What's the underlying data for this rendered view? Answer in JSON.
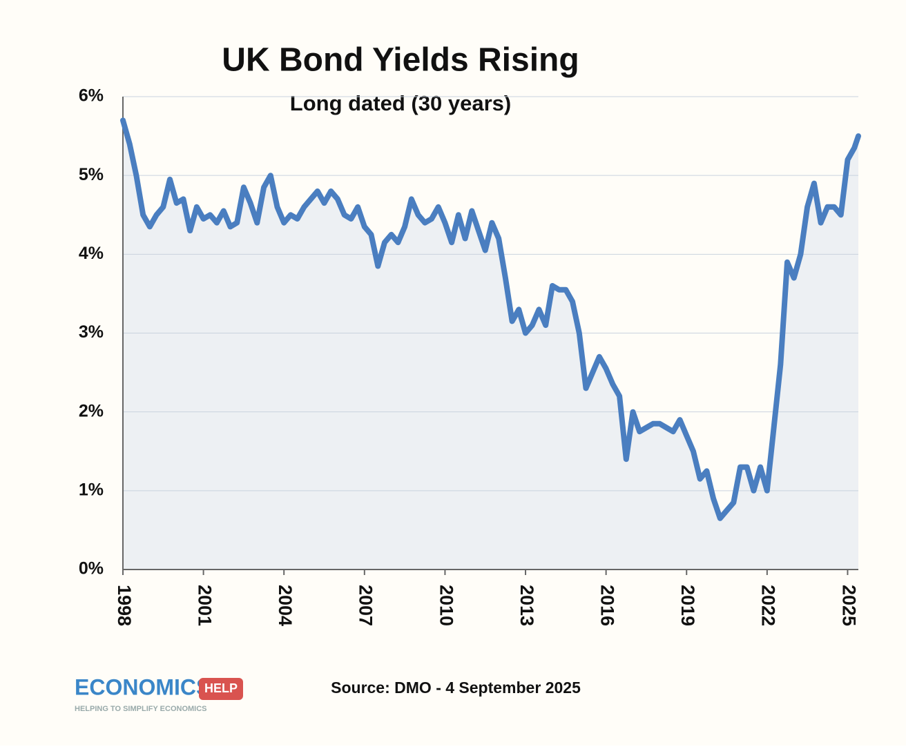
{
  "chart_data": {
    "type": "area-line",
    "title": "UK Bond Yields Rising",
    "subtitle": "Long dated (30 years)",
    "source": "Source: DMO - 4 September 2025",
    "color": "#4a7ec0",
    "fill": "#edf0f3",
    "grid": true,
    "xlim": [
      1998,
      2025.4
    ],
    "xticks": [
      1998,
      2001,
      2004,
      2007,
      2010,
      2013,
      2016,
      2019,
      2022,
      2025
    ],
    "ylim": [
      0,
      6
    ],
    "yticks": [
      {
        "value": 0,
        "label": "0%"
      },
      {
        "value": 1,
        "label": "1%"
      },
      {
        "value": 2,
        "label": "2%"
      },
      {
        "value": 3,
        "label": "3%"
      },
      {
        "value": 4,
        "label": "4%"
      },
      {
        "value": 5,
        "label": "5%"
      },
      {
        "value": 6,
        "label": "6%"
      }
    ],
    "x": [
      1998,
      1998.25,
      1998.5,
      1998.75,
      1999,
      1999.25,
      1999.5,
      1999.75,
      2000,
      2000.25,
      2000.5,
      2000.75,
      2001,
      2001.25,
      2001.5,
      2001.75,
      2002,
      2002.25,
      2002.5,
      2002.75,
      2003,
      2003.25,
      2003.5,
      2003.75,
      2004,
      2004.25,
      2004.5,
      2004.75,
      2005,
      2005.25,
      2005.5,
      2005.75,
      2006,
      2006.25,
      2006.5,
      2006.75,
      2007,
      2007.25,
      2007.5,
      2007.75,
      2008,
      2008.25,
      2008.5,
      2008.75,
      2009,
      2009.25,
      2009.5,
      2009.75,
      2010,
      2010.25,
      2010.5,
      2010.75,
      2011,
      2011.25,
      2011.5,
      2011.75,
      2012,
      2012.25,
      2012.5,
      2012.75,
      2013,
      2013.25,
      2013.5,
      2013.75,
      2014,
      2014.25,
      2014.5,
      2014.75,
      2015,
      2015.25,
      2015.5,
      2015.75,
      2016,
      2016.25,
      2016.5,
      2016.75,
      2017,
      2017.25,
      2017.5,
      2017.75,
      2018,
      2018.25,
      2018.5,
      2018.75,
      2019,
      2019.25,
      2019.5,
      2019.75,
      2020,
      2020.25,
      2020.5,
      2020.75,
      2021,
      2021.25,
      2021.5,
      2021.75,
      2022,
      2022.25,
      2022.5,
      2022.75,
      2023,
      2023.25,
      2023.5,
      2023.75,
      2024,
      2024.25,
      2024.5,
      2024.75,
      2025,
      2025.25,
      2025.4
    ],
    "values": [
      5.7,
      5.4,
      5.0,
      4.5,
      4.35,
      4.5,
      4.6,
      4.95,
      4.65,
      4.7,
      4.3,
      4.6,
      4.45,
      4.5,
      4.4,
      4.55,
      4.35,
      4.4,
      4.85,
      4.65,
      4.4,
      4.85,
      5.0,
      4.6,
      4.4,
      4.5,
      4.45,
      4.6,
      4.7,
      4.8,
      4.65,
      4.8,
      4.7,
      4.5,
      4.45,
      4.6,
      4.35,
      4.25,
      3.85,
      4.15,
      4.25,
      4.15,
      4.35,
      4.7,
      4.5,
      4.4,
      4.45,
      4.6,
      4.4,
      4.15,
      4.5,
      4.2,
      4.55,
      4.3,
      4.05,
      4.4,
      4.2,
      3.7,
      3.15,
      3.3,
      3.0,
      3.1,
      3.3,
      3.1,
      3.6,
      3.55,
      3.55,
      3.4,
      3.0,
      2.3,
      2.5,
      2.7,
      2.55,
      2.35,
      2.2,
      1.4,
      2.0,
      1.75,
      1.8,
      1.85,
      1.85,
      1.8,
      1.75,
      1.9,
      1.7,
      1.5,
      1.15,
      1.25,
      0.9,
      0.65,
      0.75,
      0.85,
      1.3,
      1.3,
      1.0,
      1.3,
      1.0,
      1.8,
      2.6,
      3.9,
      3.7,
      4.0,
      4.6,
      4.9,
      4.4,
      4.6,
      4.6,
      4.5,
      5.2,
      5.35,
      5.5
    ]
  },
  "logo": {
    "name": "ECONOMICS",
    "badge": "HELP",
    "tagline": "HELPING TO SIMPLIFY ECONOMICS"
  }
}
